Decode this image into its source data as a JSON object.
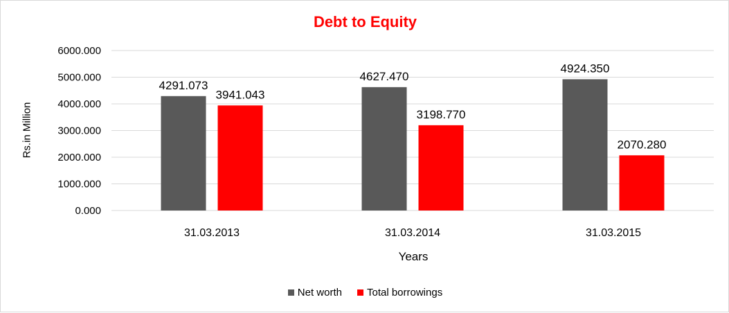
{
  "chart_data": {
    "type": "bar",
    "title": "Debt to Equity",
    "xlabel": "Years",
    "ylabel": "Rs.in Million",
    "categories": [
      "31.03.2013",
      "31.03.2014",
      "31.03.2015"
    ],
    "series": [
      {
        "name": "Net worth",
        "values": [
          4291.073,
          4627.47,
          4924.35
        ],
        "labels": [
          "4291.073",
          "4627.470",
          "4924.350"
        ],
        "color": "#595959"
      },
      {
        "name": "Total borrowings",
        "values": [
          3941.043,
          3198.77,
          2070.28
        ],
        "labels": [
          "3941.043",
          "3198.770",
          "2070.280"
        ],
        "color": "#ff0000"
      }
    ],
    "ylim": [
      0,
      6000
    ],
    "yticks": [
      "0.000",
      "1000.000",
      "2000.000",
      "3000.000",
      "4000.000",
      "5000.000",
      "6000.000"
    ],
    "grid": true,
    "legend_position": "bottom",
    "title_color": "#ff0000"
  }
}
